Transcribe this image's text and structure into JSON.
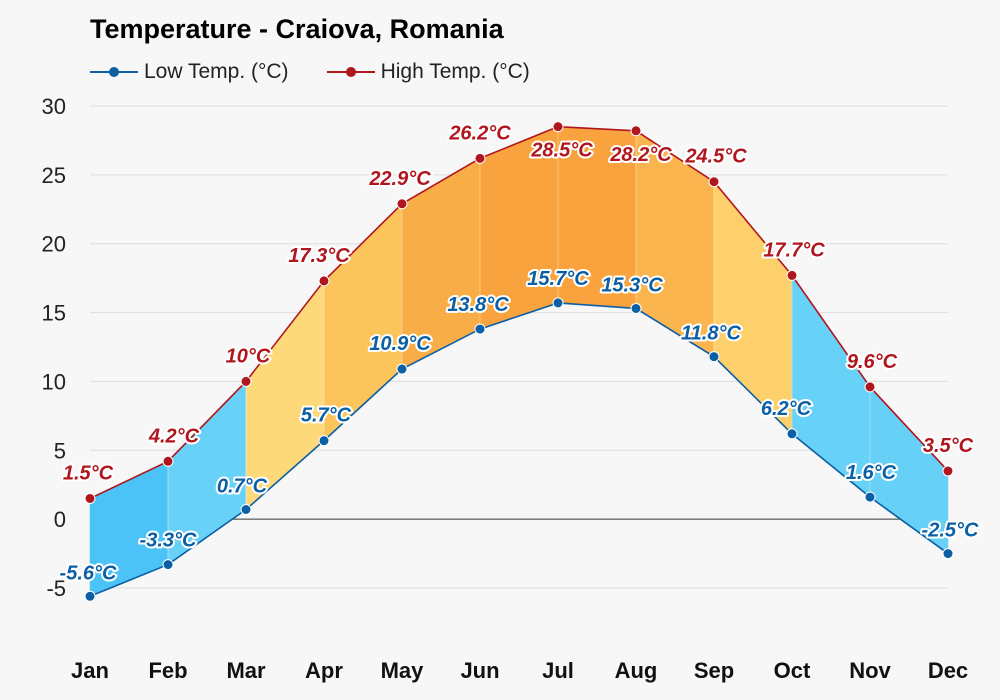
{
  "chart_data": {
    "type": "line",
    "title": "Temperature - Craiova, Romania",
    "categories": [
      "Jan",
      "Feb",
      "Mar",
      "Apr",
      "May",
      "Jun",
      "Jul",
      "Aug",
      "Sep",
      "Oct",
      "Nov",
      "Dec"
    ],
    "series": [
      {
        "name": "Low Temp. (°C)",
        "values": [
          -5.6,
          -3.3,
          0.7,
          5.7,
          10.9,
          13.8,
          15.7,
          15.3,
          11.8,
          6.2,
          1.6,
          -2.5
        ],
        "labels": [
          "-5.6°C",
          "-3.3°C",
          "0.7°C",
          "5.7°C",
          "10.9°C",
          "13.8°C",
          "15.7°C",
          "15.3°C",
          "11.8°C",
          "6.2°C",
          "1.6°C",
          "-2.5°C"
        ],
        "color": "#0b5fa5"
      },
      {
        "name": "High Temp. (°C)",
        "values": [
          1.5,
          4.2,
          10,
          17.3,
          22.9,
          26.2,
          28.5,
          28.2,
          24.5,
          17.7,
          9.6,
          3.5
        ],
        "labels": [
          "1.5°C",
          "4.2°C",
          "10°C",
          "17.3°C",
          "22.9°C",
          "26.2°C",
          "28.5°C",
          "28.2°C",
          "24.5°C",
          "17.7°C",
          "9.6°C",
          "3.5°C"
        ],
        "color": "#b0161d"
      }
    ],
    "yticks": [
      "30",
      "25",
      "20",
      "15",
      "10",
      "5",
      "0",
      "-5"
    ],
    "ylim": [
      -5,
      30
    ],
    "band_colors": [
      "#4cc3f7",
      "#67d1f7",
      "#fdd97a",
      "#fbc55c",
      "#f9ad47",
      "#f8a33d",
      "#f8a33d",
      "#fbb54f",
      "#fdd06b",
      "#67d1f7",
      "#66d0f7",
      "#4cc3f7"
    ],
    "grid": true,
    "legend_position": "top-left"
  }
}
